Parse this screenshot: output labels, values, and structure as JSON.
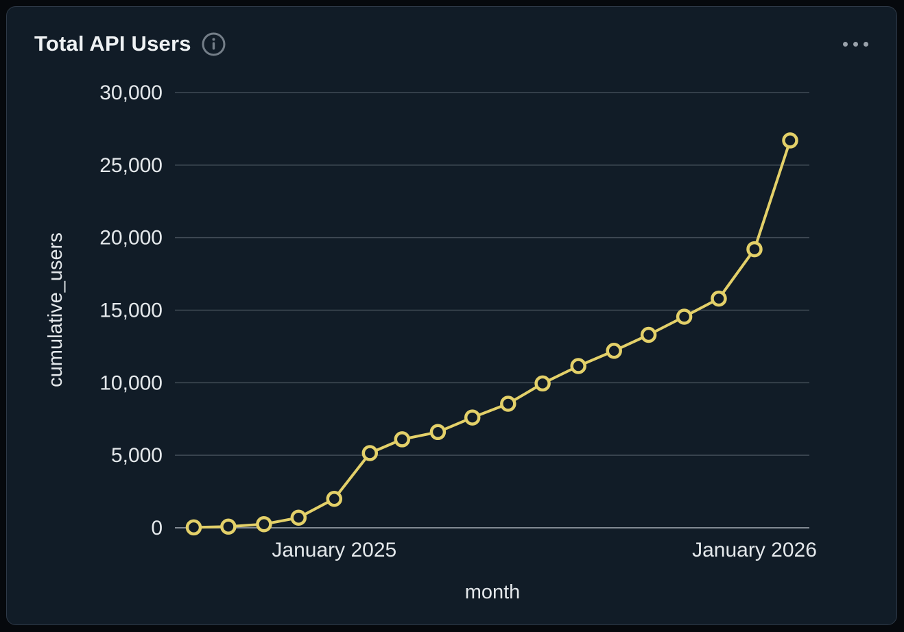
{
  "card": {
    "title": "Total API Users",
    "menu_label": "more options"
  },
  "chart_data": {
    "type": "line",
    "title": "Total API Users",
    "xlabel": "month",
    "ylabel": "cumulative_users",
    "x": [
      "2024-09-01",
      "2024-10-01",
      "2024-11-01",
      "2024-12-01",
      "2025-01-01",
      "2025-02-01",
      "2025-03-01",
      "2025-04-01",
      "2025-05-01",
      "2025-06-01",
      "2025-07-01",
      "2025-08-01",
      "2025-09-01",
      "2025-10-01",
      "2025-11-01",
      "2025-12-01",
      "2026-01-01",
      "2026-02-01"
    ],
    "series": [
      {
        "name": "cumulative_users",
        "values": [
          30,
          80,
          250,
          700,
          2000,
          5150,
          6100,
          6600,
          7600,
          8550,
          9950,
          11150,
          12200,
          13300,
          14550,
          15800,
          19200,
          26700
        ]
      }
    ],
    "yaxis": {
      "range": [
        0,
        30000
      ],
      "ticks": [
        0,
        5000,
        10000,
        15000,
        20000,
        25000,
        30000
      ],
      "tick_labels": [
        "0",
        "5,000",
        "10,000",
        "15,000",
        "20,000",
        "25,000",
        "30,000"
      ]
    },
    "xaxis": {
      "ticks": [
        "2025-01-01",
        "2026-01-01"
      ],
      "tick_labels": [
        "January 2025",
        "January 2026"
      ]
    },
    "grid": true,
    "legend": "none",
    "marker_style": "open-circle",
    "colors": {
      "line": "#e3d069",
      "marker_fill": "#111c27",
      "grid": "#414b56",
      "zero_line": "#828a93",
      "text": "#e4e8eb",
      "title_text": "#eef1f3",
      "icon": "#747e88",
      "card_bg": "#111c27",
      "page_bg": "#06090d",
      "border": "#2e3947"
    }
  }
}
